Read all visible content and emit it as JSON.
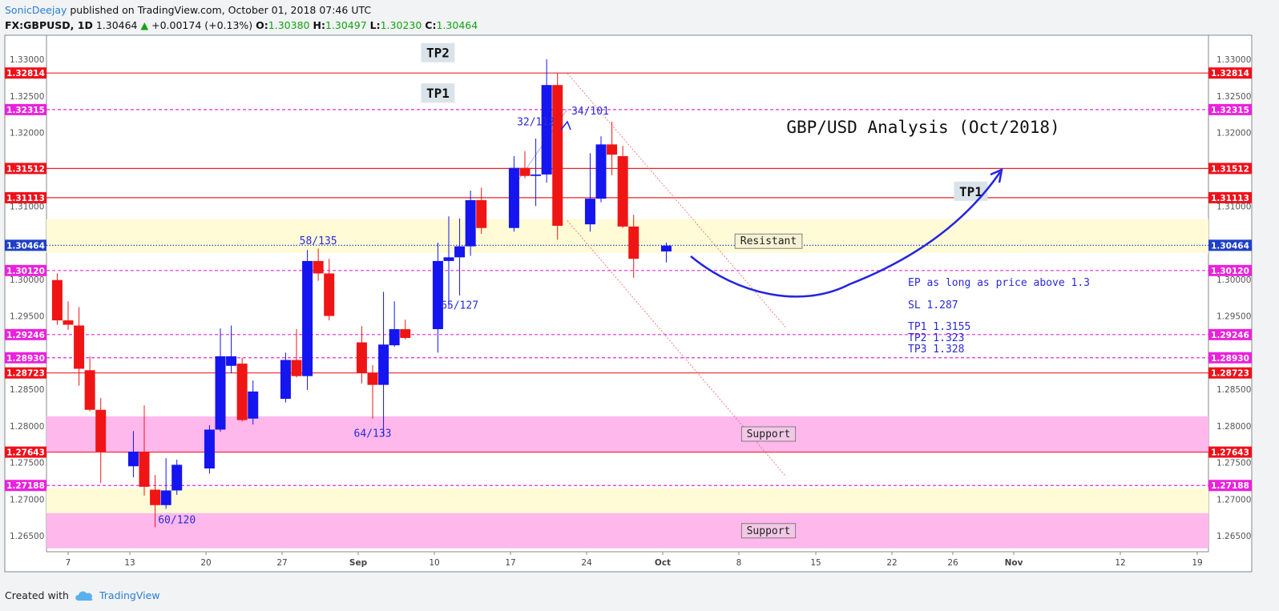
{
  "header": {
    "author": "SonicDeejay",
    "published": "published on TradingView.com, October 01, 2018 07:46 UTC",
    "symbol": "FX:GBPUSD, 1D",
    "last": "1.30464",
    "change": "+0.00174 (+0.13%)",
    "o_label": "O:",
    "o": "1.30380",
    "h_label": "H:",
    "h": "1.30497",
    "l_label": "L:",
    "l": "1.30230",
    "c_label": "C:",
    "c": "1.30464"
  },
  "footer": {
    "created_with": "Created with",
    "brand": "TradingView"
  },
  "colors": {
    "bull": "#1515f0",
    "bear": "#f01515",
    "resistance_line": "#e8222a",
    "tp_line": "#e62bd8",
    "last_price": "#1e38c8",
    "resistance_zone": "#fffbd6",
    "support_zone": "#ffb8ec",
    "annotation": "#2a2ad6"
  },
  "chart_data": {
    "type": "candlestick",
    "title": "GBP/USD Analysis (Oct/2018)",
    "x_ticks": [
      "7",
      "13",
      "20",
      "27",
      "Sep",
      "10",
      "17",
      "24",
      "Oct",
      "8",
      "15",
      "22",
      "26",
      "Nov",
      "12",
      "19"
    ],
    "y_ticks": [
      "1.33000",
      "1.32500",
      "1.32000",
      "1.31000",
      "1.30000",
      "1.29500",
      "1.28500",
      "1.28000",
      "1.27500",
      "1.27000",
      "1.26500"
    ],
    "ylim": [
      1.2633,
      1.3345
    ],
    "candles": [
      {
        "date": "2018-08-06",
        "o": 1.2999,
        "h": 1.3008,
        "l": 1.2938,
        "c": 1.2944
      },
      {
        "date": "2018-08-07",
        "o": 1.2944,
        "h": 1.297,
        "l": 1.2931,
        "c": 1.2938
      },
      {
        "date": "2018-08-08",
        "o": 1.2937,
        "h": 1.2962,
        "l": 1.2855,
        "c": 1.2878
      },
      {
        "date": "2018-08-09",
        "o": 1.2876,
        "h": 1.2895,
        "l": 1.282,
        "c": 1.2822
      },
      {
        "date": "2018-08-10",
        "o": 1.2822,
        "h": 1.2838,
        "l": 1.2722,
        "c": 1.2765
      },
      {
        "date": "2018-08-13",
        "o": 1.2745,
        "h": 1.2793,
        "l": 1.273,
        "c": 1.2765
      },
      {
        "date": "2018-08-14",
        "o": 1.2765,
        "h": 1.2828,
        "l": 1.2705,
        "c": 1.2717
      },
      {
        "date": "2018-08-15",
        "o": 1.2713,
        "h": 1.2733,
        "l": 1.2662,
        "c": 1.2692
      },
      {
        "date": "2018-08-16",
        "o": 1.2692,
        "h": 1.2756,
        "l": 1.2687,
        "c": 1.2712
      },
      {
        "date": "2018-08-17",
        "o": 1.2712,
        "h": 1.2754,
        "l": 1.2706,
        "c": 1.2747
      },
      {
        "date": "2018-08-20",
        "o": 1.2742,
        "h": 1.2801,
        "l": 1.2735,
        "c": 1.2795
      },
      {
        "date": "2018-08-21",
        "o": 1.2795,
        "h": 1.2933,
        "l": 1.2792,
        "c": 1.2895
      },
      {
        "date": "2018-08-22",
        "o": 1.2882,
        "h": 1.2937,
        "l": 1.2872,
        "c": 1.2895
      },
      {
        "date": "2018-08-23",
        "o": 1.2885,
        "h": 1.2893,
        "l": 1.2806,
        "c": 1.2808
      },
      {
        "date": "2018-08-24",
        "o": 1.281,
        "h": 1.2862,
        "l": 1.2802,
        "c": 1.2847
      },
      {
        "date": "2018-08-27",
        "o": 1.2837,
        "h": 1.29,
        "l": 1.2832,
        "c": 1.289
      },
      {
        "date": "2018-08-28",
        "o": 1.289,
        "h": 1.2932,
        "l": 1.2866,
        "c": 1.2868
      },
      {
        "date": "2018-08-29",
        "o": 1.2868,
        "h": 1.304,
        "l": 1.2849,
        "c": 1.3025
      },
      {
        "date": "2018-08-30",
        "o": 1.3025,
        "h": 1.3042,
        "l": 1.2998,
        "c": 1.3008
      },
      {
        "date": "2018-08-31",
        "o": 1.3008,
        "h": 1.3028,
        "l": 1.2944,
        "c": 1.295
      },
      {
        "date": "2018-09-03",
        "o": 1.2914,
        "h": 1.2936,
        "l": 1.2858,
        "c": 1.2872
      },
      {
        "date": "2018-09-04",
        "o": 1.2872,
        "h": 1.2883,
        "l": 1.281,
        "c": 1.2856
      },
      {
        "date": "2018-09-05",
        "o": 1.2856,
        "h": 1.2983,
        "l": 1.2787,
        "c": 1.2911
      },
      {
        "date": "2018-09-06",
        "o": 1.291,
        "h": 1.297,
        "l": 1.2908,
        "c": 1.2932
      },
      {
        "date": "2018-09-07",
        "o": 1.2932,
        "h": 1.2945,
        "l": 1.2918,
        "c": 1.292
      },
      {
        "date": "2018-09-10",
        "o": 1.2932,
        "h": 1.305,
        "l": 1.29,
        "c": 1.3025
      },
      {
        "date": "2018-09-11",
        "o": 1.3025,
        "h": 1.3086,
        "l": 1.2962,
        "c": 1.303
      },
      {
        "date": "2018-09-12",
        "o": 1.303,
        "h": 1.3083,
        "l": 1.2978,
        "c": 1.3045
      },
      {
        "date": "2018-09-13",
        "o": 1.3045,
        "h": 1.3121,
        "l": 1.3032,
        "c": 1.3108
      },
      {
        "date": "2018-09-14",
        "o": 1.3108,
        "h": 1.3125,
        "l": 1.3062,
        "c": 1.307
      },
      {
        "date": "2018-09-17",
        "o": 1.307,
        "h": 1.3168,
        "l": 1.3065,
        "c": 1.3152
      },
      {
        "date": "2018-09-18",
        "o": 1.3152,
        "h": 1.3175,
        "l": 1.3138,
        "c": 1.3141
      },
      {
        "date": "2018-09-19",
        "o": 1.3141,
        "h": 1.3192,
        "l": 1.31,
        "c": 1.3143
      },
      {
        "date": "2018-09-20",
        "o": 1.3143,
        "h": 1.33,
        "l": 1.3132,
        "c": 1.3265
      },
      {
        "date": "2018-09-21",
        "o": 1.3265,
        "h": 1.3281,
        "l": 1.3054,
        "c": 1.3073
      },
      {
        "date": "2018-09-24",
        "o": 1.3075,
        "h": 1.3172,
        "l": 1.3065,
        "c": 1.311
      },
      {
        "date": "2018-09-25",
        "o": 1.311,
        "h": 1.3195,
        "l": 1.3105,
        "c": 1.3184
      },
      {
        "date": "2018-09-26",
        "o": 1.3184,
        "h": 1.3215,
        "l": 1.3142,
        "c": 1.317
      },
      {
        "date": "2018-09-27",
        "o": 1.3168,
        "h": 1.3182,
        "l": 1.307,
        "c": 1.3072
      },
      {
        "date": "2018-09-28",
        "o": 1.3072,
        "h": 1.3088,
        "l": 1.3002,
        "c": 1.3028
      },
      {
        "date": "2018-10-01",
        "o": 1.3038,
        "h": 1.305,
        "l": 1.3023,
        "c": 1.3046
      }
    ],
    "horizontal_levels": [
      {
        "price": "1.32814",
        "style": "solid",
        "color": "red"
      },
      {
        "price": "1.32315",
        "style": "dashed",
        "color": "magenta"
      },
      {
        "price": "1.31512",
        "style": "solid",
        "color": "red"
      },
      {
        "price": "1.31113",
        "style": "solid",
        "color": "red"
      },
      {
        "price": "1.30464",
        "style": "dotted",
        "color": "blue"
      },
      {
        "price": "1.30120",
        "style": "dashed",
        "color": "magenta"
      },
      {
        "price": "1.29246",
        "style": "dashed",
        "color": "magenta"
      },
      {
        "price": "1.28930",
        "style": "dashed",
        "color": "magenta"
      },
      {
        "price": "1.28723",
        "style": "solid",
        "color": "red"
      },
      {
        "price": "1.27643",
        "style": "solid",
        "color": "red"
      },
      {
        "price": "1.27188",
        "style": "dashed",
        "color": "magenta"
      }
    ],
    "zones": [
      {
        "label": "Resistant",
        "from": 1.3036,
        "to": 1.3082,
        "color": "yellow"
      },
      {
        "label": "Support",
        "from": 1.2765,
        "to": 1.2813,
        "color": "pink"
      },
      {
        "label": "",
        "from": 1.268,
        "to": 1.2715,
        "color": "yellow"
      },
      {
        "label": "Support",
        "from": 1.2633,
        "to": 1.2681,
        "color": "pink"
      }
    ],
    "swing_labels": [
      {
        "text": "58/135",
        "date": "2018-08-30",
        "price": 1.3048
      },
      {
        "text": "64/133",
        "date": "2018-09-04",
        "price": 1.2785
      },
      {
        "text": "65/127",
        "date": "2018-09-12",
        "price": 1.296
      },
      {
        "text": "32/112",
        "date": "2018-09-19",
        "price": 1.321
      },
      {
        "text": "34/101",
        "date": "2018-09-24",
        "price": 1.3225
      },
      {
        "text": "60/120",
        "date": "2018-08-17",
        "price": 1.2667
      }
    ],
    "target_labels": [
      {
        "text": "TP2",
        "date": "2018-09-10",
        "price": 1.3307
      },
      {
        "text": "TP1",
        "date": "2018-09-10",
        "price": 1.3252
      },
      {
        "text": "TP1",
        "date": "2018-10-29",
        "price": 1.3118
      }
    ],
    "notes": [
      "EP as long as price above 1.3",
      "SL 1.287",
      "TP1 1.3155",
      "TP2 1.323",
      "TP3 1.328"
    ]
  }
}
